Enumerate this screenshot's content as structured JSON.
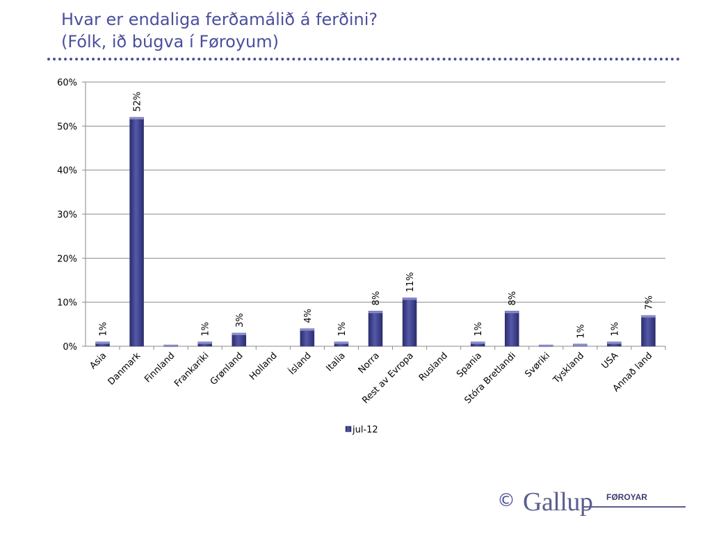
{
  "slide": {
    "title_line1": "Hvar er endaliga ferðamálið á ferðini?",
    "title_line2": "(Fólk, ið búgva í Føroyum)"
  },
  "chart_data": {
    "type": "bar",
    "categories": [
      "Asia",
      "Danmark",
      "Finnland",
      "Frankariki",
      "Grønland",
      "Holland",
      "Ísland",
      "Italia",
      "Norra",
      "Rest av Evropa",
      "Rusland",
      "Spania",
      "Stóra Bretlandi",
      "Svøriki",
      "Tyskland",
      "USA",
      "Annað land"
    ],
    "series": [
      {
        "name": "jul-12",
        "values": [
          1,
          52,
          0.3,
          1,
          3,
          0,
          4,
          1,
          8,
          11,
          0,
          1,
          8,
          0.3,
          0.5,
          1,
          7
        ],
        "data_labels": [
          "1%",
          "52%",
          "",
          "1%",
          "3%",
          "",
          "4%",
          "1%",
          "8%",
          "11%",
          "",
          "1%",
          "8%",
          "",
          "1%",
          "1%",
          "7%"
        ]
      }
    ],
    "ylim": [
      0,
      60
    ],
    "y_ticks": [
      "0%",
      "10%",
      "20%",
      "30%",
      "40%",
      "50%",
      "60%"
    ],
    "grid": true,
    "legend_position": "bottom",
    "bar_color": "#3c3f8c"
  },
  "footer": {
    "copyright": "©",
    "logo_word": "Gallup",
    "logo_sub": "FØROYAR"
  }
}
